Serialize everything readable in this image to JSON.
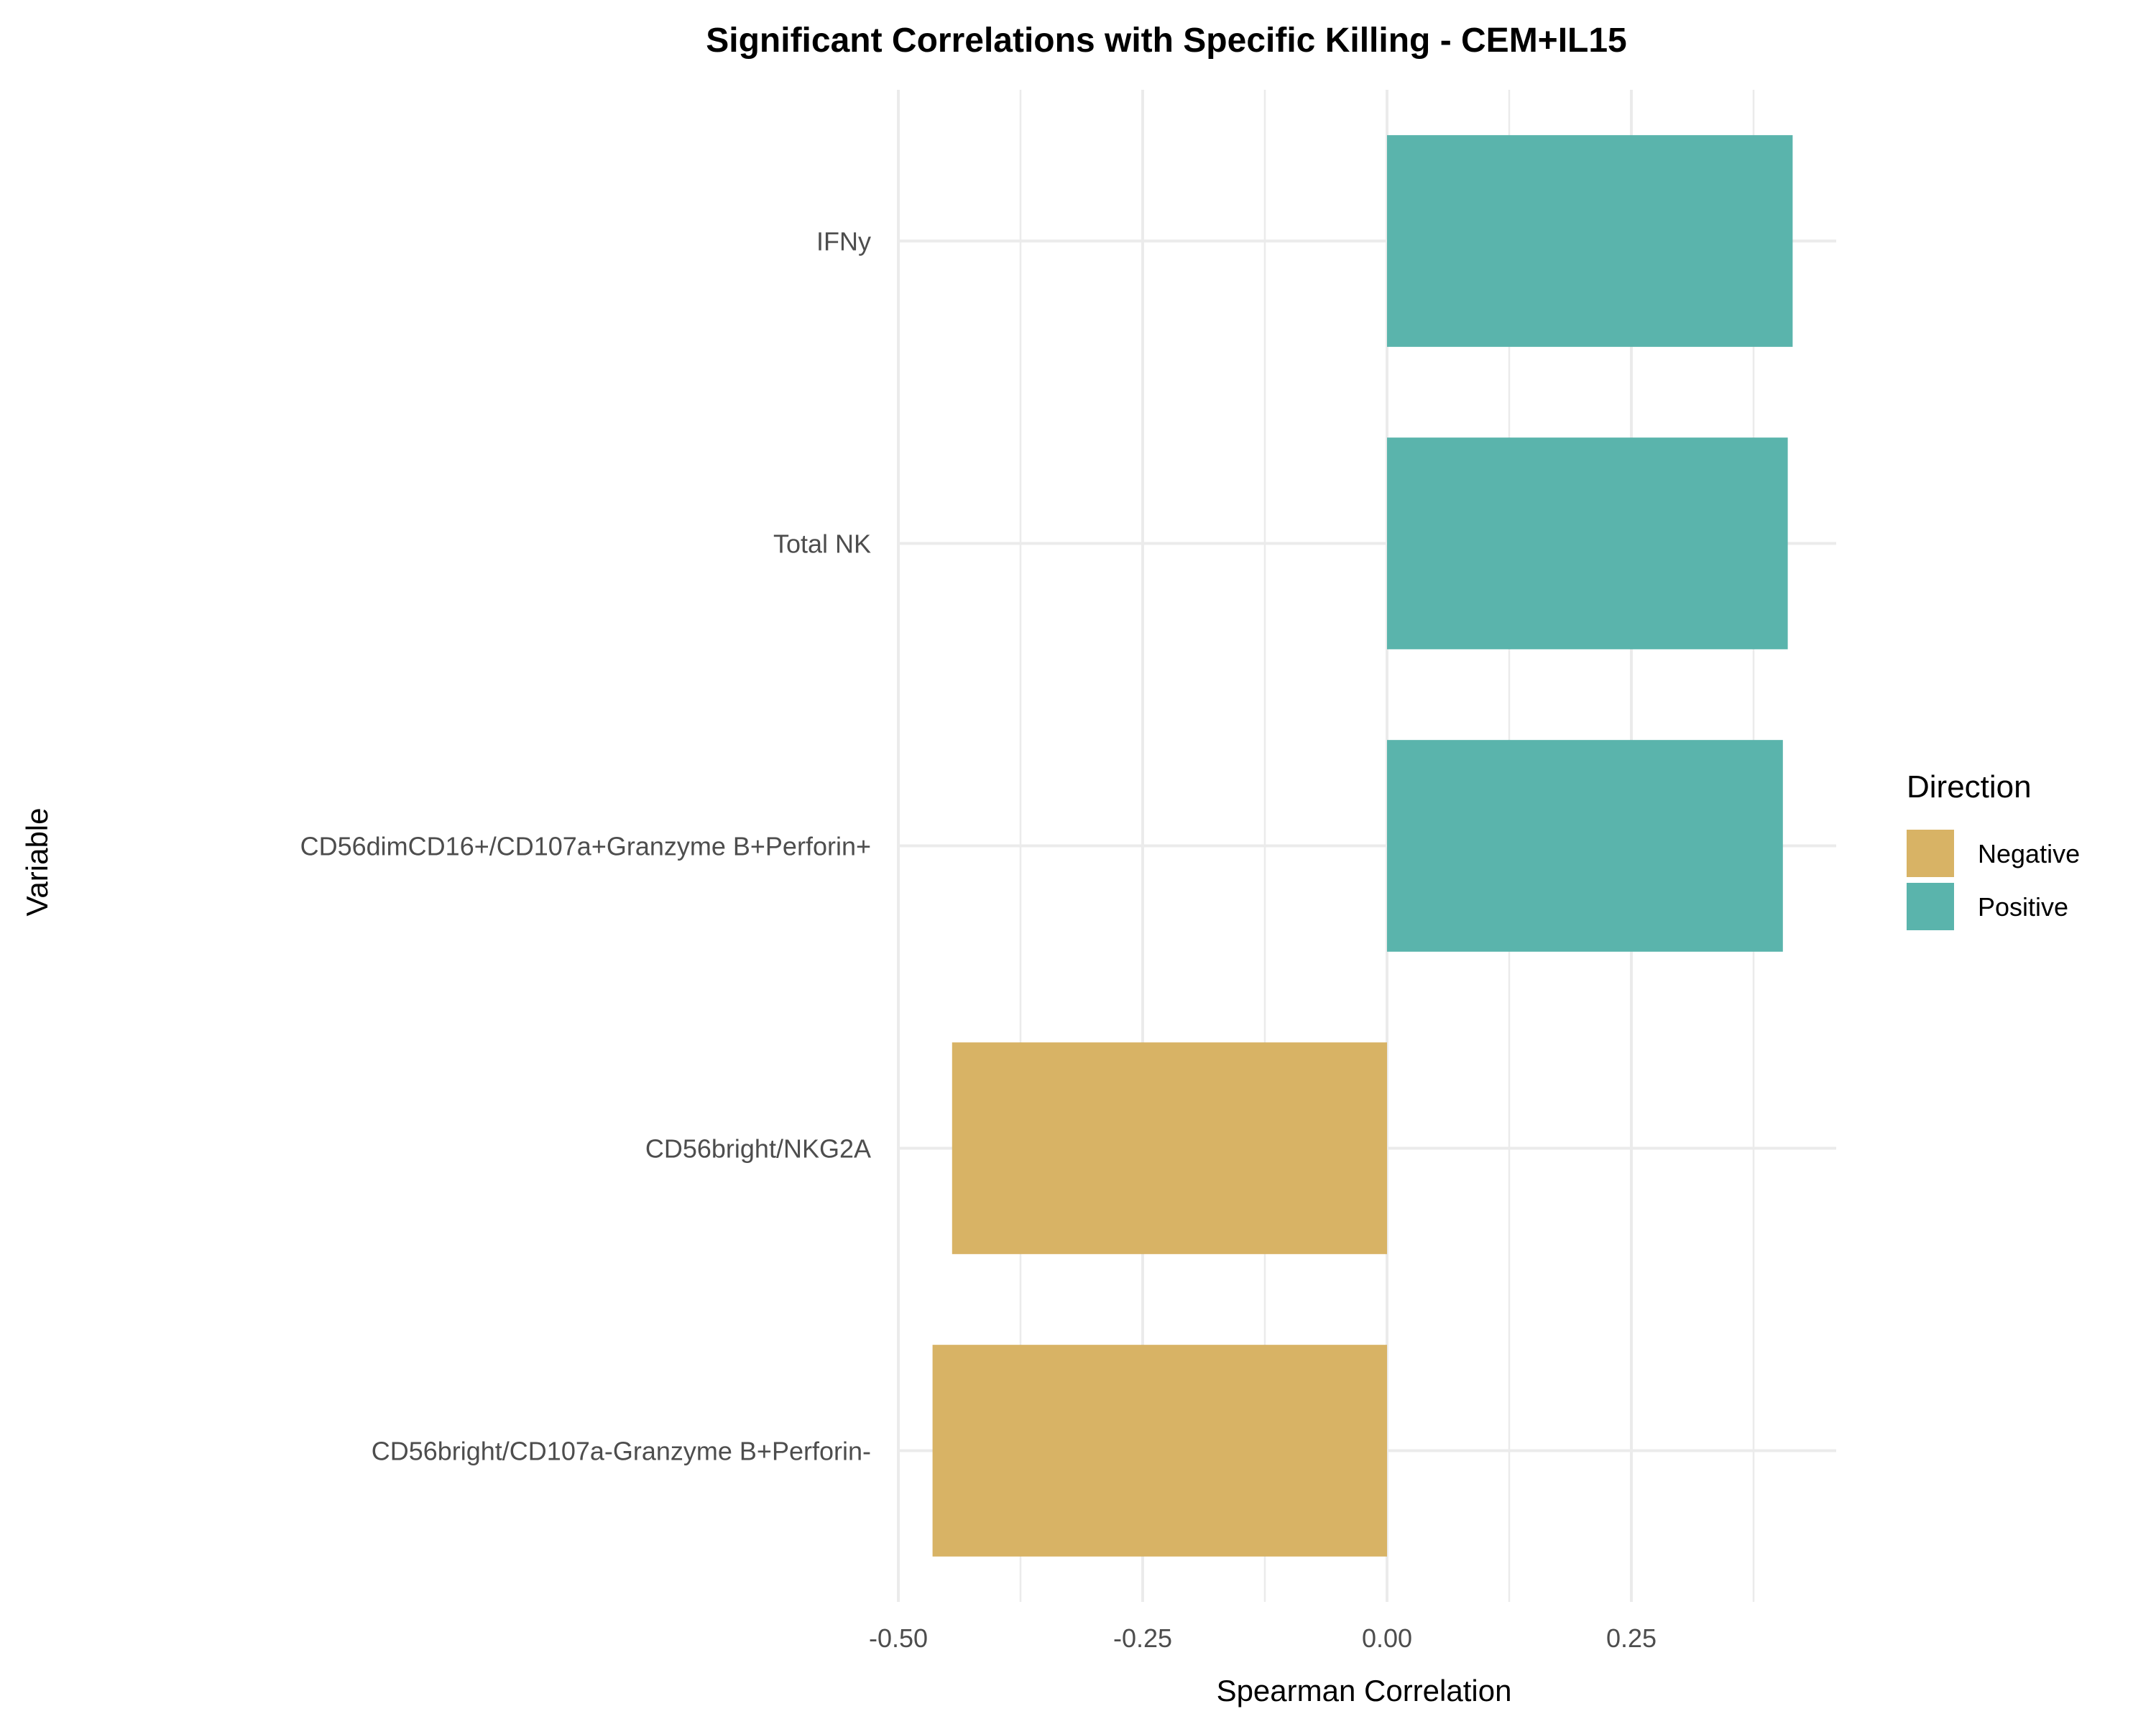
{
  "chart_data": {
    "type": "bar",
    "orientation": "horizontal",
    "title": "Significant Correlations with Specific Killing - CEM+IL15",
    "xlabel": "Spearman Correlation",
    "ylabel": "Variable",
    "xlim": [
      -0.5,
      0.46
    ],
    "xticks": [
      -0.5,
      -0.25,
      0.0,
      0.25
    ],
    "xtick_labels": [
      "-0.50",
      "-0.25",
      "0.00",
      "0.25"
    ],
    "grid": true,
    "categories": [
      "IFNy",
      "Total NK",
      "CD56dimCD16+/CD107a+Granzyme B+Perforin+",
      "CD56bright/NKG2A",
      "CD56bright/CD107a-Granzyme B+Perforin-"
    ],
    "values": [
      0.415,
      0.41,
      0.405,
      -0.445,
      -0.465
    ],
    "directions": [
      "Positive",
      "Positive",
      "Positive",
      "Negative",
      "Negative"
    ],
    "legend": {
      "title": "Direction",
      "position": "right",
      "entries": [
        {
          "label": "Negative",
          "color": "#D8B365"
        },
        {
          "label": "Positive",
          "color": "#5AB4AC"
        }
      ]
    },
    "colors": {
      "Negative": "#D8B365",
      "Positive": "#5AB4AC"
    }
  }
}
